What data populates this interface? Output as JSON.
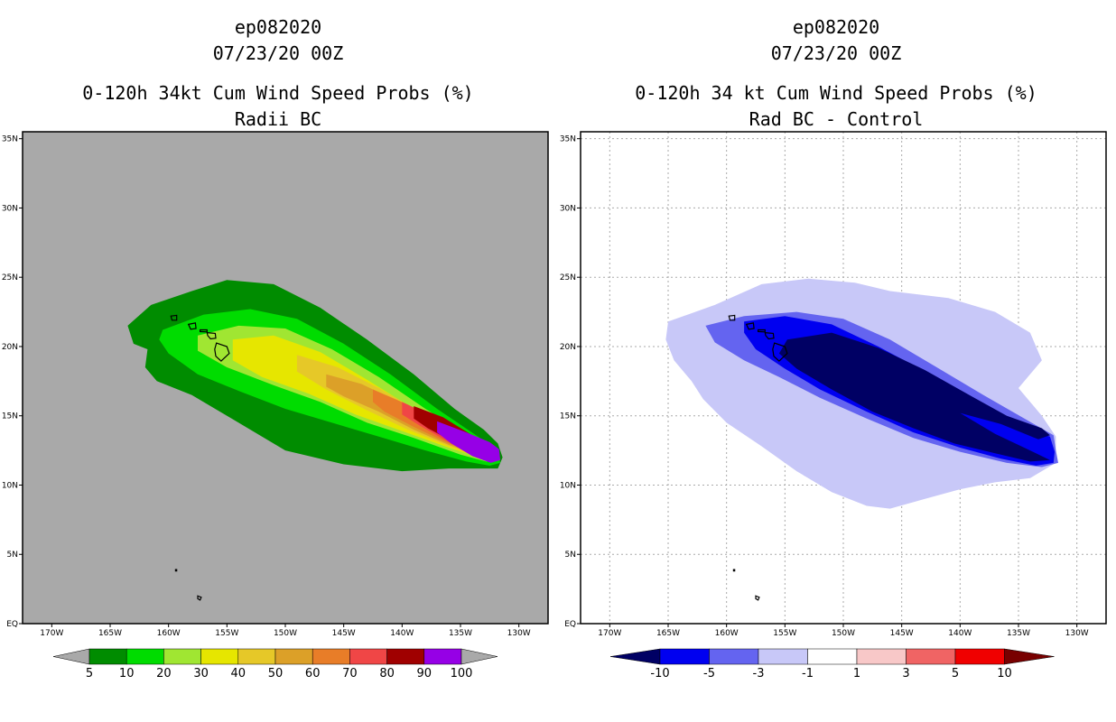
{
  "panels": [
    {
      "id": "left",
      "title": {
        "line1": "ep082020",
        "line2": "07/23/20 00Z",
        "line3": "0-120h 34kt Cum Wind Speed Probs (%)",
        "line4": "Radii BC"
      },
      "background": "#a9a9a9"
    },
    {
      "id": "right",
      "title": {
        "line1": "ep082020",
        "line2": "07/23/20 00Z",
        "line3": "0-120h 34 kt Cum Wind Speed Probs (%)",
        "line4": "Rad BC - Control"
      },
      "background": "#ffffff"
    }
  ],
  "chart_data": [
    {
      "type": "heatmap",
      "title": "0-120h 34kt Cum Wind Speed Probs (%) Radii BC",
      "x_ticks": [
        "170W",
        "165W",
        "160W",
        "155W",
        "150W",
        "145W",
        "140W",
        "135W",
        "130W"
      ],
      "y_ticks": [
        "EQ",
        "5N",
        "10N",
        "15N",
        "20N",
        "25N",
        "30N",
        "35N"
      ],
      "x_range_lon": [
        -172.5,
        -127.5
      ],
      "y_range_lat": [
        0,
        35.5
      ],
      "grid": false,
      "colorbar": {
        "labels": [
          "5",
          "10",
          "20",
          "30",
          "40",
          "50",
          "60",
          "70",
          "80",
          "90",
          "100"
        ],
        "colors": [
          "#008c00",
          "#00dc00",
          "#a0e632",
          "#e6e600",
          "#e6c828",
          "#dca028",
          "#e87d28",
          "#f04646",
          "#a00000",
          "#9600e6"
        ],
        "extend_color": "#a9a9a9"
      },
      "levels": [
        {
          "min": 5,
          "color": "#008c00",
          "poly": [
            [
              -163.5,
              21.5
            ],
            [
              -161.5,
              23
            ],
            [
              -158,
              24
            ],
            [
              -155,
              24.8
            ],
            [
              -151,
              24.5
            ],
            [
              -147,
              22.8
            ],
            [
              -143,
              20.5
            ],
            [
              -139,
              18
            ],
            [
              -135.5,
              15.5
            ],
            [
              -133,
              14
            ],
            [
              -131.8,
              13
            ],
            [
              -131.4,
              12
            ],
            [
              -131.8,
              11.2
            ],
            [
              -133,
              11.2
            ],
            [
              -136,
              11.2
            ],
            [
              -140,
              11
            ],
            [
              -145,
              11.5
            ],
            [
              -150,
              12.5
            ],
            [
              -154,
              14.5
            ],
            [
              -158,
              16.5
            ],
            [
              -161,
              17.5
            ],
            [
              -162,
              18.5
            ],
            [
              -161.8,
              19.8
            ],
            [
              -163,
              20.2
            ]
          ]
        },
        {
          "min": 10,
          "color": "#00dc00",
          "poly": [
            [
              -160.5,
              21.2
            ],
            [
              -157,
              22.3
            ],
            [
              -153,
              22.7
            ],
            [
              -149,
              22
            ],
            [
              -145,
              20.2
            ],
            [
              -141,
              18
            ],
            [
              -137,
              15.5
            ],
            [
              -133.5,
              13.5
            ],
            [
              -131.8,
              12.5
            ],
            [
              -131.6,
              11.6
            ],
            [
              -132.5,
              11.4
            ],
            [
              -134.5,
              11.7
            ],
            [
              -138,
              12.5
            ],
            [
              -142,
              13.5
            ],
            [
              -146,
              14.5
            ],
            [
              -150,
              15.5
            ],
            [
              -154,
              16.8
            ],
            [
              -157.5,
              18
            ],
            [
              -160,
              19.5
            ],
            [
              -160.8,
              20.5
            ]
          ]
        },
        {
          "min": 20,
          "color": "#a0e632",
          "poly": [
            [
              -157.5,
              20.8
            ],
            [
              -154,
              21.5
            ],
            [
              -150,
              21.3
            ],
            [
              -146,
              19.8
            ],
            [
              -142,
              17.8
            ],
            [
              -138,
              15.5
            ],
            [
              -134,
              13.4
            ],
            [
              -131.8,
              12.5
            ],
            [
              -131.6,
              11.8
            ],
            [
              -132.8,
              11.7
            ],
            [
              -135,
              12.2
            ],
            [
              -139,
              13.4
            ],
            [
              -143,
              14.5
            ],
            [
              -147,
              16
            ],
            [
              -151,
              17.2
            ],
            [
              -155,
              18.5
            ],
            [
              -157.5,
              19.7
            ]
          ]
        },
        {
          "min": 30,
          "color": "#e6e600",
          "poly": [
            [
              -154.5,
              20.5
            ],
            [
              -151,
              20.8
            ],
            [
              -147,
              19.6
            ],
            [
              -143,
              17.6
            ],
            [
              -139,
              15.5
            ],
            [
              -135,
              13.5
            ],
            [
              -132,
              12.5
            ],
            [
              -131.8,
              11.9
            ],
            [
              -133,
              11.9
            ],
            [
              -136,
              12.7
            ],
            [
              -140,
              13.9
            ],
            [
              -144,
              15.1
            ],
            [
              -148,
              16.6
            ],
            [
              -152,
              17.8
            ],
            [
              -154.5,
              19
            ]
          ]
        },
        {
          "min": 40,
          "color": "#e6c828",
          "poly": [
            [
              -149,
              19.4
            ],
            [
              -145.5,
              18.5
            ],
            [
              -142,
              17
            ],
            [
              -138.5,
              15.3
            ],
            [
              -135,
              13.6
            ],
            [
              -132.2,
              12.5
            ],
            [
              -132,
              12
            ],
            [
              -133.2,
              12
            ],
            [
              -136,
              12.8
            ],
            [
              -139.5,
              14
            ],
            [
              -143,
              15.4
            ],
            [
              -146.5,
              16.9
            ],
            [
              -149,
              18.2
            ]
          ]
        },
        {
          "min": 50,
          "color": "#dca028",
          "poly": [
            [
              -146.5,
              18
            ],
            [
              -143.5,
              17.3
            ],
            [
              -140,
              15.9
            ],
            [
              -136.5,
              14.3
            ],
            [
              -133.5,
              13
            ],
            [
              -132.3,
              12.4
            ],
            [
              -133.3,
              12.1
            ],
            [
              -136,
              12.9
            ],
            [
              -139,
              14
            ],
            [
              -142,
              15.3
            ],
            [
              -145,
              16.4
            ],
            [
              -146.5,
              17.1
            ]
          ]
        },
        {
          "min": 60,
          "color": "#e87d28",
          "poly": [
            [
              -142.5,
              16.9
            ],
            [
              -139.5,
              15.8
            ],
            [
              -136.5,
              14.4
            ],
            [
              -133.8,
              13.1
            ],
            [
              -132.4,
              12.4
            ],
            [
              -133.5,
              12.2
            ],
            [
              -136,
              13
            ],
            [
              -139,
              14.2
            ],
            [
              -141.5,
              15.3
            ],
            [
              -142.5,
              16
            ]
          ]
        },
        {
          "min": 70,
          "color": "#f04646",
          "poly": [
            [
              -140,
              16
            ],
            [
              -137.5,
              15
            ],
            [
              -135,
              13.9
            ],
            [
              -133,
              12.9
            ],
            [
              -132.4,
              12.3
            ],
            [
              -133.6,
              12.2
            ],
            [
              -136,
              13.1
            ],
            [
              -138.5,
              14.3
            ],
            [
              -140,
              15.1
            ]
          ]
        },
        {
          "min": 80,
          "color": "#a00000",
          "poly": [
            [
              -139,
              15.7
            ],
            [
              -136.5,
              14.9
            ],
            [
              -134,
              13.6
            ],
            [
              -132.6,
              12.6
            ],
            [
              -133.6,
              12.3
            ],
            [
              -135.8,
              13.2
            ],
            [
              -137.8,
              14.1
            ],
            [
              -139,
              14.8
            ]
          ]
        },
        {
          "min": 90,
          "color": "#9600e6",
          "poly": [
            [
              -137,
              14.6
            ],
            [
              -134.5,
              13.8
            ],
            [
              -132.5,
              13.1
            ],
            [
              -131.7,
              12.6
            ],
            [
              -131.6,
              11.8
            ],
            [
              -132.4,
              11.6
            ],
            [
              -134,
              12.1
            ],
            [
              -135.8,
              13
            ],
            [
              -137,
              13.8
            ]
          ]
        }
      ]
    },
    {
      "type": "heatmap",
      "title": "0-120h 34 kt Cum Wind Speed Probs (%) Rad BC - Control",
      "x_ticks": [
        "170W",
        "165W",
        "160W",
        "155W",
        "150W",
        "145W",
        "140W",
        "135W",
        "130W"
      ],
      "y_ticks": [
        "EQ",
        "5N",
        "10N",
        "15N",
        "20N",
        "25N",
        "30N",
        "35N"
      ],
      "x_range_lon": [
        -172.5,
        -127.5
      ],
      "y_range_lat": [
        0,
        35.5
      ],
      "grid": true,
      "colorbar": {
        "labels": [
          "-10",
          "-5",
          "-3",
          "-1",
          "1",
          "3",
          "5",
          "10"
        ],
        "colors": [
          "#000064",
          "#0000f0",
          "#6464f0",
          "#c8c8f8",
          "#ffffff",
          "#f8c8c8",
          "#f06464",
          "#f00000",
          "#780000"
        ]
      },
      "levels": [
        {
          "max": -1,
          "color": "#c8c8f8",
          "poly": [
            [
              -165,
              21.8
            ],
            [
              -161,
              23
            ],
            [
              -157,
              24.5
            ],
            [
              -153,
              24.9
            ],
            [
              -149,
              24.6
            ],
            [
              -146,
              24
            ],
            [
              -141,
              23.5
            ],
            [
              -137,
              22.5
            ],
            [
              -134,
              21
            ],
            [
              -133,
              19
            ],
            [
              -135,
              17
            ],
            [
              -133,
              15
            ],
            [
              -131.8,
              13.5
            ],
            [
              -131.8,
              11.6
            ],
            [
              -134,
              10.5
            ],
            [
              -137,
              10.2
            ],
            [
              -140,
              9.7
            ],
            [
              -143,
              9
            ],
            [
              -146,
              8.3
            ],
            [
              -148,
              8.5
            ],
            [
              -151,
              9.5
            ],
            [
              -154,
              11
            ],
            [
              -157,
              12.8
            ],
            [
              -160,
              14.5
            ],
            [
              -162,
              16.2
            ],
            [
              -163,
              17.5
            ],
            [
              -164.5,
              19
            ],
            [
              -165.2,
              20.5
            ]
          ]
        },
        {
          "max": -3,
          "color": "#6464f0",
          "poly": [
            [
              -161.8,
              21.5
            ],
            [
              -158.5,
              22.2
            ],
            [
              -154,
              22.5
            ],
            [
              -150,
              22
            ],
            [
              -146,
              20.5
            ],
            [
              -142,
              18.5
            ],
            [
              -138,
              16.5
            ],
            [
              -134.5,
              14.8
            ],
            [
              -132,
              13.6
            ],
            [
              -131.8,
              12.5
            ],
            [
              -131.6,
              11.6
            ],
            [
              -133,
              11.3
            ],
            [
              -136,
              11.6
            ],
            [
              -140,
              12.4
            ],
            [
              -144,
              13.4
            ],
            [
              -148,
              14.8
            ],
            [
              -152,
              16.3
            ],
            [
              -155.5,
              17.8
            ],
            [
              -158.5,
              19
            ],
            [
              -161,
              20.3
            ]
          ]
        },
        {
          "max": -5,
          "color": "#0000f0",
          "poly": [
            [
              -158.5,
              21.8
            ],
            [
              -155,
              22.2
            ],
            [
              -151,
              21.6
            ],
            [
              -147,
              20
            ],
            [
              -143,
              18.2
            ],
            [
              -139,
              16.2
            ],
            [
              -135.5,
              14.5
            ],
            [
              -132.3,
              13.5
            ],
            [
              -131.9,
              12.4
            ],
            [
              -132,
              11.6
            ],
            [
              -133.5,
              11.4
            ],
            [
              -136.5,
              11.9
            ],
            [
              -140,
              12.7
            ],
            [
              -144,
              13.8
            ],
            [
              -148,
              15.3
            ],
            [
              -152,
              16.9
            ],
            [
              -155,
              18.4
            ],
            [
              -157.5,
              19.8
            ],
            [
              -158.5,
              21
            ]
          ]
        },
        {
          "max": -10,
          "color": "#000064",
          "poly": [
            [
              -154.8,
              20.5
            ],
            [
              -151,
              21
            ],
            [
              -147,
              19.9
            ],
            [
              -143,
              18.3
            ],
            [
              -139,
              16.4
            ],
            [
              -136,
              15
            ],
            [
              -133,
              14.1
            ],
            [
              -132.3,
              13.6
            ],
            [
              -133.3,
              13.3
            ],
            [
              -136.5,
              14.4
            ],
            [
              -140,
              15.2
            ],
            [
              -137,
              13.7
            ],
            [
              -134,
              12.5
            ],
            [
              -132.3,
              11.8
            ],
            [
              -134,
              11.7
            ],
            [
              -137,
              12.3
            ],
            [
              -140.5,
              13
            ],
            [
              -144,
              14.1
            ],
            [
              -147.5,
              15.3
            ],
            [
              -151,
              16.9
            ],
            [
              -154,
              18.4
            ],
            [
              -155.5,
              19.5
            ]
          ]
        }
      ]
    }
  ]
}
